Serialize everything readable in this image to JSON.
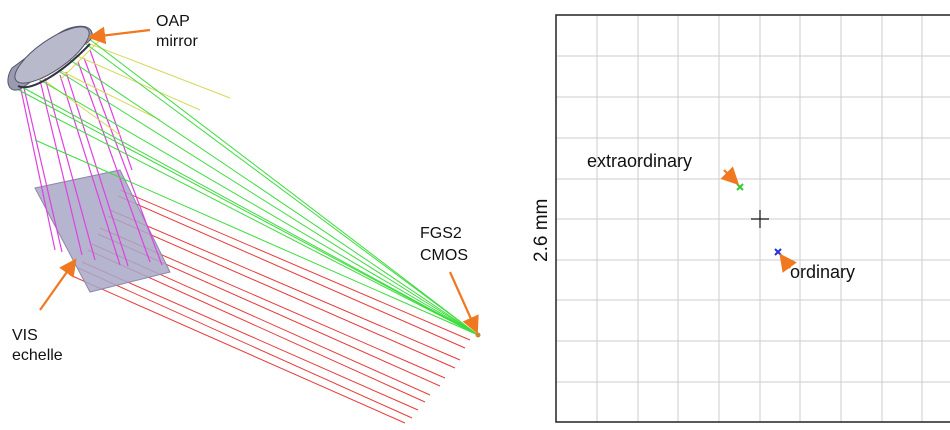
{
  "left_panel": {
    "labels": {
      "oap_line1": "OAP",
      "oap_line2": "mirror",
      "fgs_line1": "FGS2",
      "fgs_line2": "CMOS",
      "vis_line1": "VIS",
      "vis_line2": "echelle"
    },
    "colors": {
      "arrow": "#f07820",
      "green_rays": "#3ddc3d",
      "yellow_rays": "#d8d85a",
      "magenta_rays": "#e040e0",
      "red_rays": "#e83a3a",
      "echelle_plate": "#a9a8c8",
      "mirror": "#9a9ab0"
    }
  },
  "right_panel": {
    "scale_label": "2.6 mm",
    "spot_labels": {
      "extraordinary": "extraordinary",
      "ordinary": "ordinary"
    },
    "colors": {
      "grid": "#cccccc",
      "frame": "#222222",
      "extraordinary_spot": "#33cc33",
      "ordinary_spot": "#2233dd",
      "arrow": "#f07820",
      "crosshair": "#111111"
    }
  }
}
